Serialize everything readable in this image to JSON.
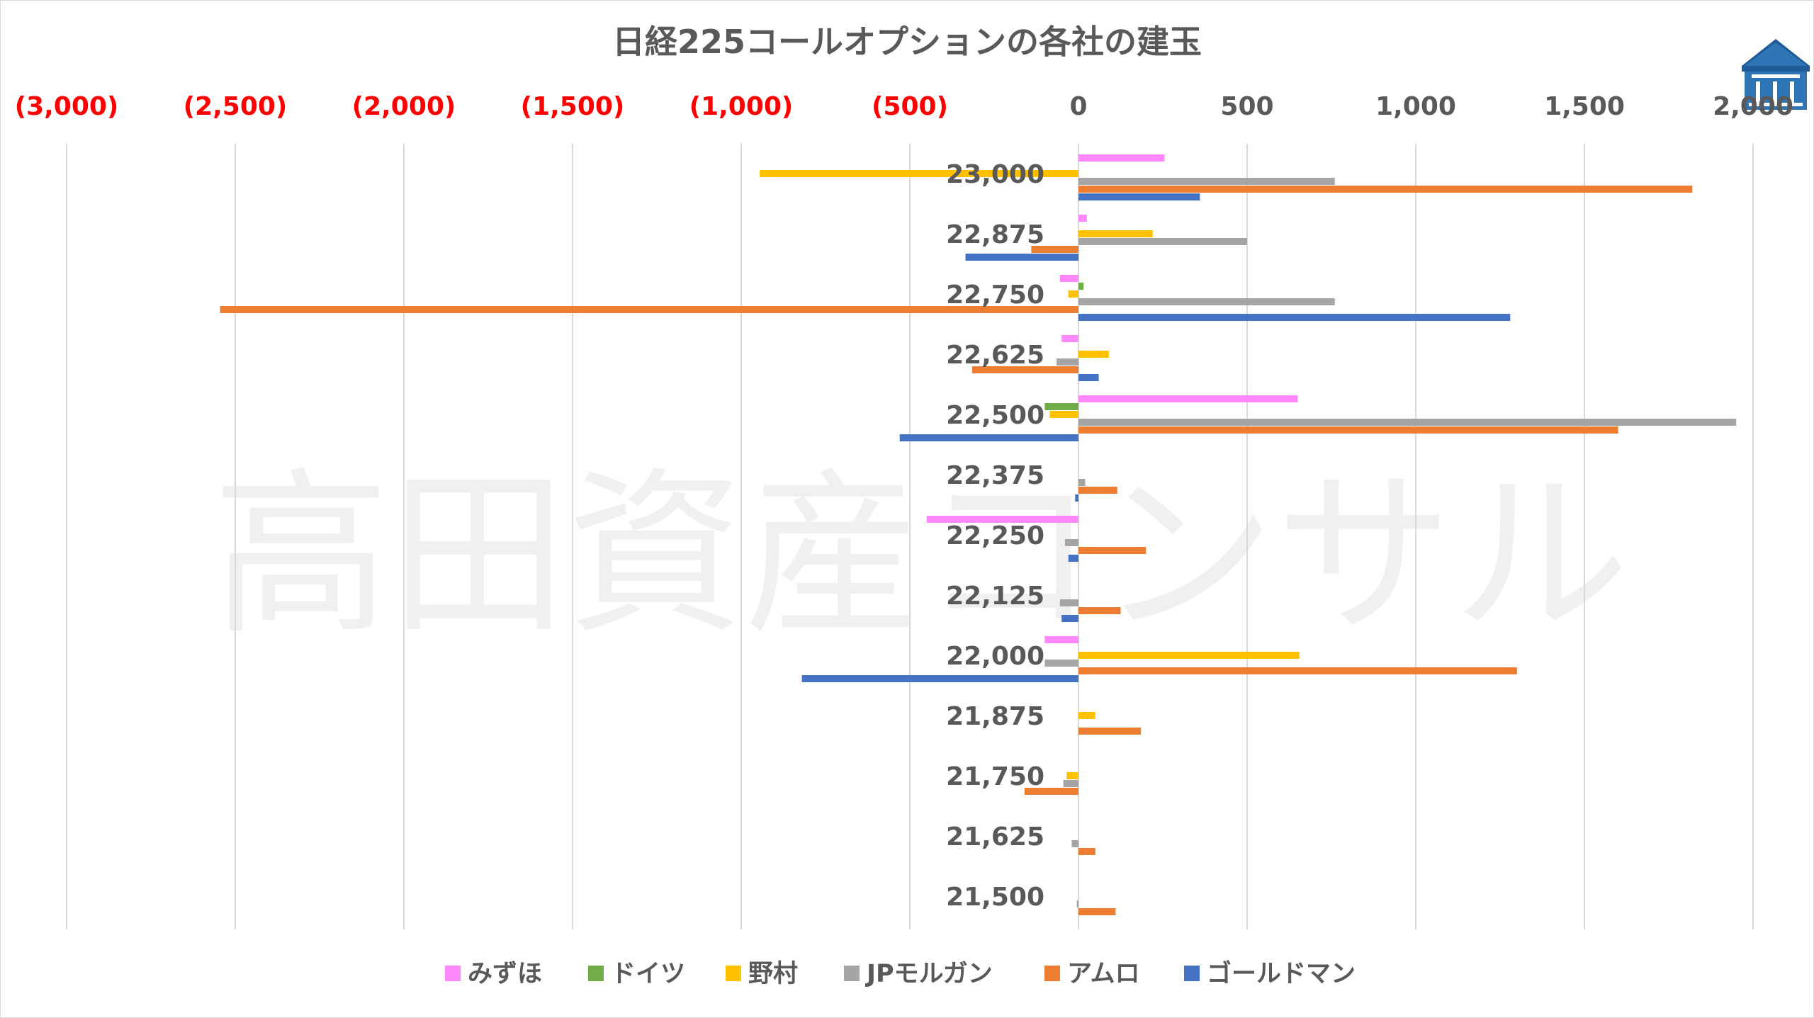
{
  "watermark_text": "高田資産コンサル",
  "chart_data": {
    "type": "bar",
    "orientation": "horizontal",
    "title": "日経225コールオプションの各社の建玉",
    "xlabel": "",
    "ylabel": "",
    "xlim": [
      -3200,
      2100
    ],
    "x_ticks": [
      -3000,
      -2500,
      -2000,
      -1500,
      -1000,
      -500,
      0,
      500,
      1000,
      1500,
      2000
    ],
    "x_tick_labels": [
      "(3,000)",
      "(2,500)",
      "(2,000)",
      "(1,500)",
      "(1,000)",
      "(500)",
      "0",
      "500",
      "1,000",
      "1,500",
      "2,000"
    ],
    "negative_tick_color": "#ff0000",
    "positive_tick_color": "#595959",
    "grid": true,
    "legend_position": "bottom",
    "categories": [
      "23,000",
      "22,875",
      "22,750",
      "22,625",
      "22,500",
      "22,375",
      "22,250",
      "22,125",
      "22,000",
      "21,875",
      "21,750",
      "21,625",
      "21,500"
    ],
    "series": [
      {
        "name": "みずほ",
        "color": "#ff88ff",
        "values": [
          255,
          25,
          -55,
          -50,
          650,
          0,
          -450,
          0,
          -100,
          0,
          0,
          0,
          0
        ]
      },
      {
        "name": "ドイツ",
        "color": "#70ad47",
        "values": [
          0,
          0,
          15,
          0,
          -100,
          0,
          0,
          0,
          0,
          0,
          0,
          0,
          0
        ]
      },
      {
        "name": "野村",
        "color": "#ffc000",
        "values": [
          -945,
          220,
          -30,
          90,
          -85,
          0,
          0,
          0,
          655,
          50,
          -35,
          0,
          0
        ]
      },
      {
        "name": "JPモルガン",
        "color": "#a5a5a5",
        "values": [
          760,
          500,
          760,
          -65,
          1950,
          20,
          -40,
          -55,
          -100,
          0,
          -45,
          -20,
          -5
        ]
      },
      {
        "name": "アムロ",
        "color": "#ed7d31",
        "values": [
          1820,
          -140,
          -2545,
          -315,
          1600,
          115,
          200,
          125,
          1300,
          185,
          -160,
          50,
          110
        ]
      },
      {
        "name": "ゴールドマン",
        "color": "#4472c4",
        "values": [
          360,
          -335,
          1280,
          60,
          -530,
          -10,
          -30,
          -50,
          -820,
          0,
          0,
          0,
          0
        ]
      }
    ]
  }
}
